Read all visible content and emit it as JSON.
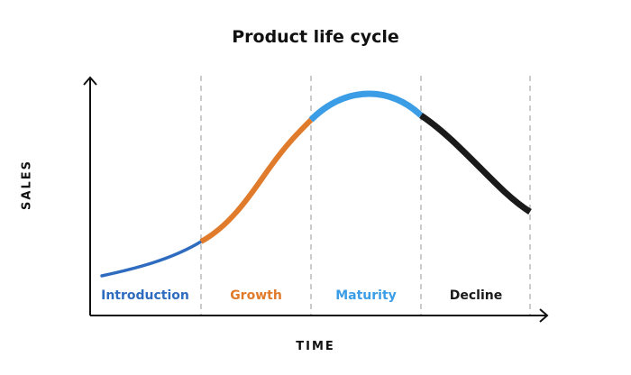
{
  "title": "Product life cycle",
  "x_axis_label": "TIME",
  "y_axis_label": "SALES",
  "stages": [
    {
      "label": "Introduction",
      "color": "#2f6cc0"
    },
    {
      "label": "Growth",
      "color": "#e07b2c"
    },
    {
      "label": "Maturity",
      "color": "#3b9de6"
    },
    {
      "label": "Decline",
      "color": "#1a1a1a"
    }
  ]
}
